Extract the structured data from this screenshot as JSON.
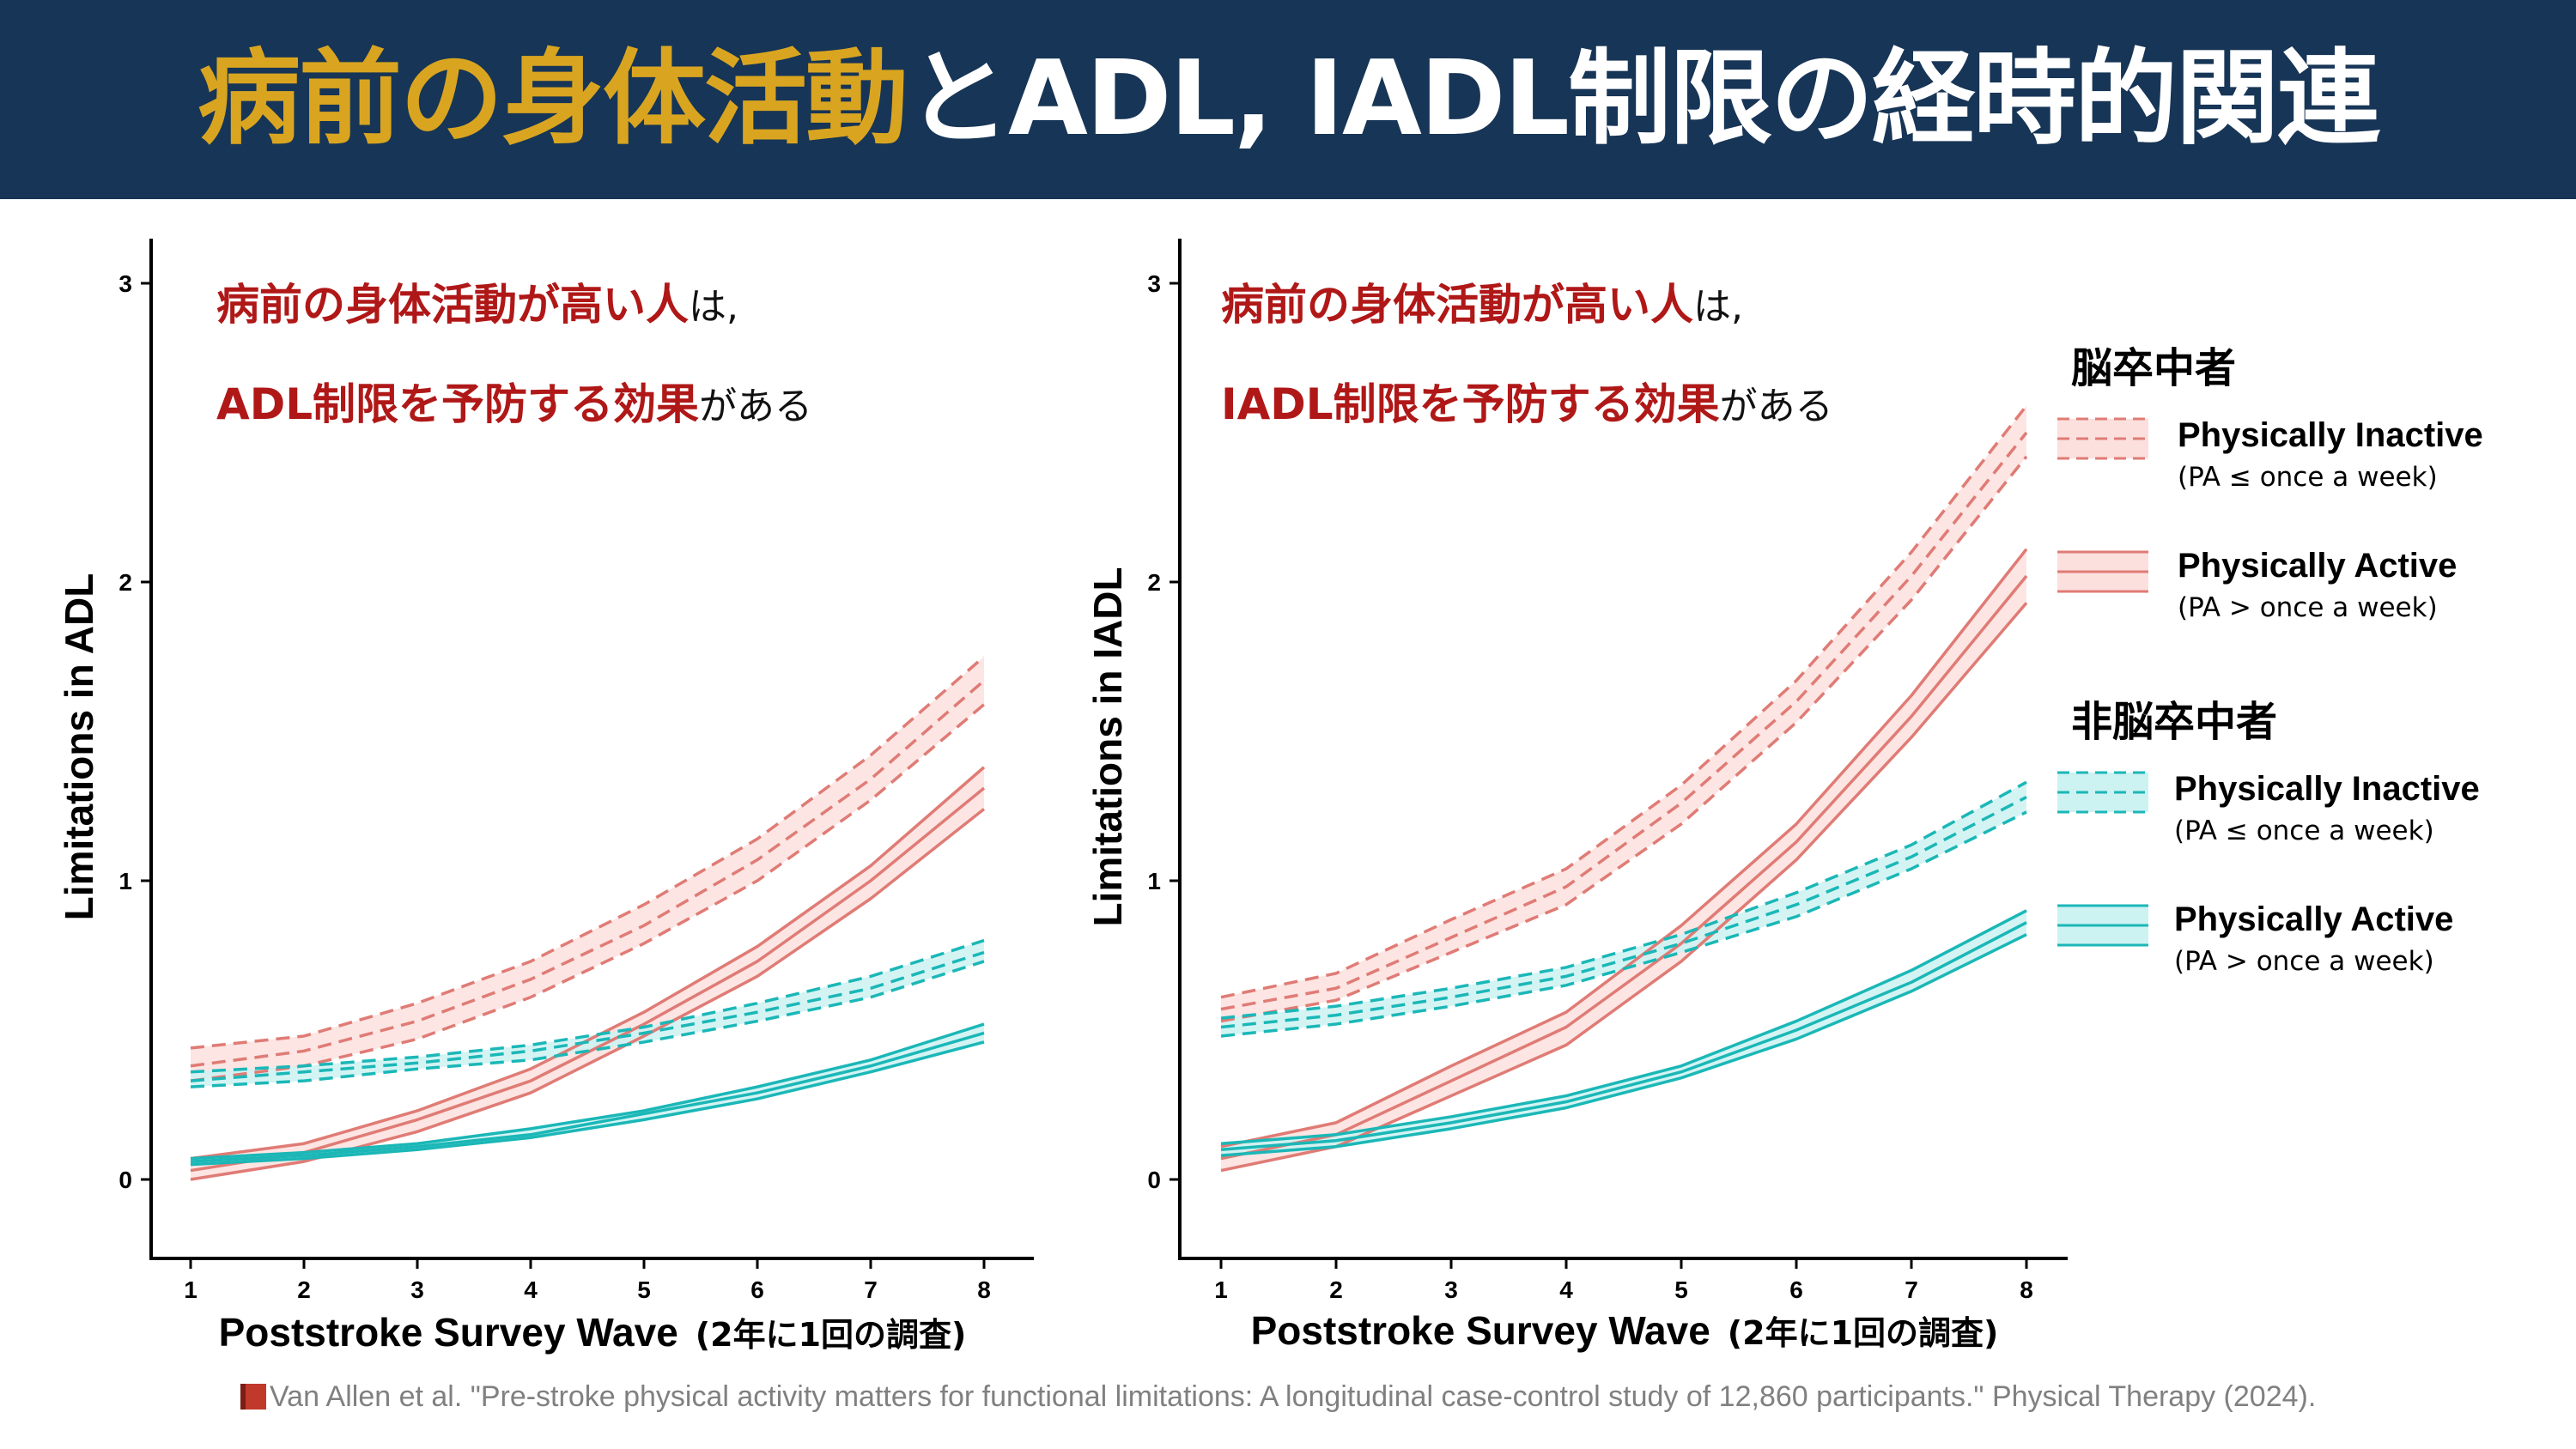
{
  "title": {
    "part1": "病前の身体活動",
    "part2": "とADL, IADL制限",
    "part3": "の経時的関連"
  },
  "colors": {
    "header_bg": "#173556",
    "title_accent": "#d9a520",
    "stroke": "#e07b75",
    "stroke_band": "#fbe0de",
    "nonstroke": "#1bb7b7",
    "nonstroke_band": "#cdf2f2",
    "annotation": "#b01818"
  },
  "legend": {
    "stroke_header": "脳卒中者",
    "nonstroke_header": "非脳卒中者",
    "inactive_label": "Physically Inactive",
    "inactive_sub": "(PA ≤ once a week)",
    "active_label": "Physically Active",
    "active_sub": "(PA > once a week)"
  },
  "panels": {
    "adl": {
      "ylabel": "Limitations in ADL",
      "xlabel": "Poststroke Survey Wave",
      "xlabel_note": "(2年に1回の調査)",
      "anno_line1_red": "病前の身体活動が高い人",
      "anno_line1_tail": "は,",
      "anno_line2_red": "ADL制限を予防する効果",
      "anno_line2_tail": "がある"
    },
    "iadl": {
      "ylabel": "Limitations in IADL",
      "xlabel": "Poststroke Survey Wave",
      "xlabel_note": "(2年に1回の調査)",
      "anno_line1_red": "病前の身体活動が高い人",
      "anno_line1_tail": "は,",
      "anno_line2_red": "IADL制限を予防する効果",
      "anno_line2_tail": "がある"
    }
  },
  "citation": "Van Allen et al. \"Pre-stroke physical activity matters for functional limitations: A longitudinal case-control study of 12,860 participants.\" Physical Therapy (2024).",
  "chart_data": [
    {
      "type": "line",
      "ylabel": "Limitations in ADL",
      "xlabel": "Poststroke Survey Wave",
      "x": [
        1,
        2,
        3,
        4,
        5,
        6,
        7,
        8
      ],
      "x_ticks": [
        "1",
        "2",
        "3",
        "4",
        "5",
        "6",
        "7",
        "8"
      ],
      "y_ticks": [
        "0",
        "1",
        "2",
        "3"
      ],
      "ylim": [
        -0.25,
        3.15
      ],
      "series": [
        {
          "group": "脳卒中者",
          "name": "Physically Inactive",
          "style": "dashed",
          "color": "#e07b75",
          "mean": [
            0.38,
            0.43,
            0.53,
            0.67,
            0.85,
            1.07,
            1.34,
            1.67
          ],
          "lower": [
            0.33,
            0.38,
            0.47,
            0.61,
            0.79,
            1.0,
            1.27,
            1.59
          ],
          "upper": [
            0.44,
            0.48,
            0.59,
            0.73,
            0.92,
            1.14,
            1.42,
            1.75
          ]
        },
        {
          "group": "脳卒中者",
          "name": "Physically Active",
          "style": "solid",
          "color": "#e07b75",
          "mean": [
            0.03,
            0.09,
            0.2,
            0.33,
            0.52,
            0.73,
            1.0,
            1.31
          ],
          "lower": [
            0.0,
            0.06,
            0.16,
            0.29,
            0.48,
            0.68,
            0.94,
            1.24
          ],
          "upper": [
            0.07,
            0.12,
            0.23,
            0.37,
            0.56,
            0.78,
            1.05,
            1.38
          ]
        },
        {
          "group": "非脳卒中者",
          "name": "Physically Inactive",
          "style": "dashed",
          "color": "#1bb7b7",
          "mean": [
            0.33,
            0.36,
            0.39,
            0.43,
            0.49,
            0.56,
            0.64,
            0.76
          ],
          "lower": [
            0.31,
            0.33,
            0.37,
            0.4,
            0.46,
            0.53,
            0.61,
            0.73
          ],
          "upper": [
            0.36,
            0.38,
            0.41,
            0.45,
            0.51,
            0.59,
            0.68,
            0.8
          ]
        },
        {
          "group": "非脳卒中者",
          "name": "Physically Active",
          "style": "solid",
          "color": "#1bb7b7",
          "mean": [
            0.06,
            0.08,
            0.11,
            0.15,
            0.22,
            0.29,
            0.38,
            0.49
          ],
          "lower": [
            0.05,
            0.07,
            0.1,
            0.14,
            0.2,
            0.27,
            0.36,
            0.46
          ],
          "upper": [
            0.07,
            0.09,
            0.12,
            0.17,
            0.23,
            0.31,
            0.4,
            0.52
          ]
        }
      ]
    },
    {
      "type": "line",
      "ylabel": "Limitations in IADL",
      "xlabel": "Poststroke Survey Wave",
      "x": [
        1,
        2,
        3,
        4,
        5,
        6,
        7,
        8
      ],
      "x_ticks": [
        "1",
        "2",
        "3",
        "4",
        "5",
        "6",
        "7",
        "8"
      ],
      "y_ticks": [
        "0",
        "1",
        "2",
        "3"
      ],
      "ylim": [
        -0.25,
        3.15
      ],
      "series": [
        {
          "group": "脳卒中者",
          "name": "Physically Inactive",
          "style": "dashed",
          "color": "#e07b75",
          "mean": [
            0.57,
            0.64,
            0.81,
            0.98,
            1.26,
            1.6,
            2.02,
            2.5
          ],
          "lower": [
            0.53,
            0.6,
            0.76,
            0.92,
            1.19,
            1.53,
            1.94,
            2.42
          ],
          "upper": [
            0.61,
            0.69,
            0.87,
            1.04,
            1.32,
            1.67,
            2.1,
            2.59
          ]
        },
        {
          "group": "脳卒中者",
          "name": "Physically Active",
          "style": "solid",
          "color": "#e07b75",
          "mean": [
            0.07,
            0.15,
            0.33,
            0.51,
            0.79,
            1.13,
            1.55,
            2.02
          ],
          "lower": [
            0.03,
            0.11,
            0.28,
            0.45,
            0.73,
            1.07,
            1.48,
            1.93
          ],
          "upper": [
            0.11,
            0.19,
            0.38,
            0.56,
            0.85,
            1.19,
            1.62,
            2.11
          ]
        },
        {
          "group": "非脳卒中者",
          "name": "Physically Inactive",
          "style": "dashed",
          "color": "#1bb7b7",
          "mean": [
            0.51,
            0.55,
            0.61,
            0.68,
            0.79,
            0.92,
            1.08,
            1.28
          ],
          "lower": [
            0.48,
            0.52,
            0.58,
            0.65,
            0.76,
            0.88,
            1.04,
            1.23
          ],
          "upper": [
            0.54,
            0.58,
            0.64,
            0.71,
            0.82,
            0.96,
            1.12,
            1.33
          ]
        },
        {
          "group": "非脳卒中者",
          "name": "Physically Active",
          "style": "solid",
          "color": "#1bb7b7",
          "mean": [
            0.1,
            0.13,
            0.19,
            0.26,
            0.36,
            0.5,
            0.66,
            0.86
          ],
          "lower": [
            0.08,
            0.11,
            0.17,
            0.24,
            0.34,
            0.47,
            0.63,
            0.82
          ],
          "upper": [
            0.12,
            0.15,
            0.21,
            0.28,
            0.38,
            0.53,
            0.7,
            0.9
          ]
        }
      ]
    }
  ]
}
